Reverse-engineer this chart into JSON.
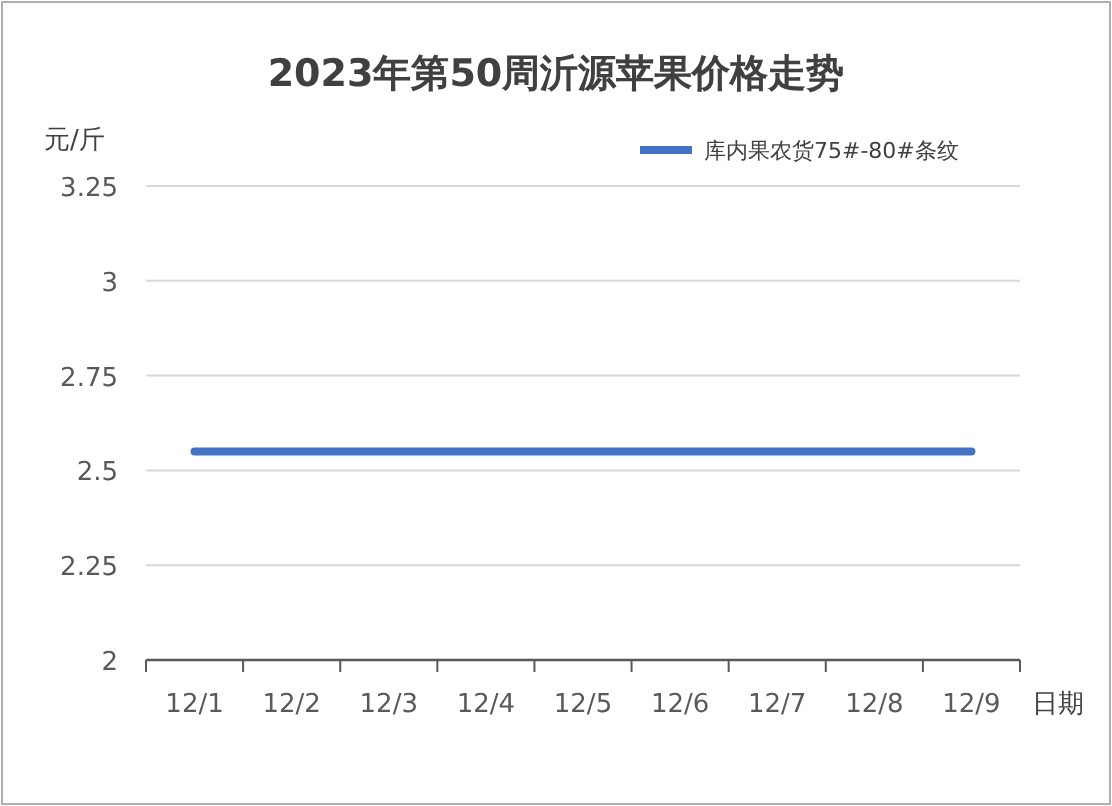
{
  "chart_data": {
    "type": "line",
    "title": "2023年第50周沂源苹果价格走势",
    "ylabel": "元/斤",
    "xlabel": "日期",
    "categories": [
      "12/1",
      "12/2",
      "12/3",
      "12/4",
      "12/5",
      "12/6",
      "12/7",
      "12/8",
      "12/9"
    ],
    "series": [
      {
        "name": "库内果农货75#-80#条纹",
        "color": "#4472c4",
        "values": [
          2.55,
          2.55,
          2.55,
          2.55,
          2.55,
          2.55,
          2.55,
          2.55,
          2.55
        ]
      }
    ],
    "ylim": [
      2,
      3.25
    ],
    "yticks": [
      {
        "value": 2,
        "label": "2"
      },
      {
        "value": 2.25,
        "label": "2.25"
      },
      {
        "value": 2.5,
        "label": "2.5"
      },
      {
        "value": 2.75,
        "label": "2.75"
      },
      {
        "value": 3,
        "label": "3"
      },
      {
        "value": 3.25,
        "label": "3.25"
      }
    ],
    "grid": "y",
    "legend": "top right",
    "marker": "none",
    "line_style": "solid"
  }
}
